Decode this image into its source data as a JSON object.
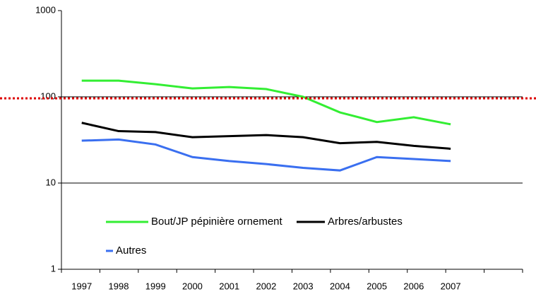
{
  "chart_data": {
    "type": "line",
    "categories": [
      "1997",
      "1998",
      "1999",
      "2000",
      "2001",
      "2002",
      "2003",
      "2004",
      "2005",
      "2006",
      "2007"
    ],
    "series": [
      {
        "name": "Bout/JP pépinière ornement",
        "color": "#33ee33",
        "values": [
          154,
          154,
          140,
          125,
          130,
          123,
          100,
          66,
          51,
          58,
          48
        ]
      },
      {
        "name": "Arbres/arbustes",
        "color": "#000000",
        "values": [
          50,
          40,
          39,
          34,
          35,
          36,
          34,
          29,
          30,
          27,
          25
        ]
      },
      {
        "name": "Autres",
        "color": "#3a6ff0",
        "values": [
          31,
          32,
          28,
          20,
          18,
          16.6,
          15,
          14,
          20,
          19,
          18
        ]
      }
    ],
    "ylim": [
      1,
      1000
    ],
    "yticks": [
      1,
      10,
      100,
      1000
    ],
    "log_scale": true,
    "grid": true,
    "reference_line": {
      "value": 96,
      "color": "#dd0000"
    },
    "legend": "bottom-left"
  }
}
